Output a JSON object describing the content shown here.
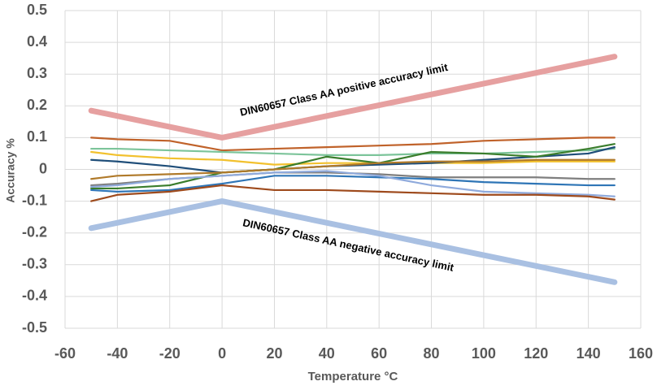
{
  "chart_data": {
    "type": "line",
    "x_label": "Temperature °C",
    "y_label": "Accuracy %",
    "xlim": [
      -60,
      160
    ],
    "xticks": [
      -60,
      -40,
      -20,
      0,
      20,
      40,
      60,
      80,
      100,
      120,
      140,
      160
    ],
    "ylim": [
      -0.5,
      0.5
    ],
    "yticks": [
      0.5,
      0.4,
      0.3,
      0.2,
      0.1,
      0,
      -0.1,
      -0.2,
      -0.3,
      -0.4,
      -0.5
    ],
    "grid": true,
    "series": [
      {
        "name": "DIN60657 Class AA positive accuracy limit",
        "color": "#e6a0a0",
        "x": [
          -50,
          0,
          150
        ],
        "values": [
          0.185,
          0.1,
          0.355
        ]
      },
      {
        "name": "DIN60657 Class AA negative accuracy limit",
        "color": "#a9c0e2",
        "x": [
          -50,
          0,
          150
        ],
        "values": [
          -0.185,
          -0.1,
          -0.355
        ]
      },
      {
        "color": "#c0622a",
        "x": [
          -50,
          -40,
          -20,
          0,
          20,
          40,
          60,
          80,
          100,
          120,
          140,
          150
        ],
        "values": [
          0.1,
          0.095,
          0.09,
          0.06,
          0.065,
          0.07,
          0.075,
          0.08,
          0.09,
          0.095,
          0.1,
          0.1
        ]
      },
      {
        "color": "#7cc49a",
        "x": [
          -50,
          -40,
          -20,
          0,
          20,
          40,
          60,
          80,
          100,
          120,
          140,
          150
        ],
        "values": [
          0.065,
          0.065,
          0.06,
          0.055,
          0.05,
          0.045,
          0.045,
          0.05,
          0.05,
          0.055,
          0.06,
          0.065
        ]
      },
      {
        "color": "#f2c12e",
        "x": [
          -50,
          -40,
          -20,
          0,
          20,
          40,
          60,
          80,
          100,
          120,
          140,
          150
        ],
        "values": [
          0.055,
          0.045,
          0.035,
          0.03,
          0.015,
          0.02,
          0.02,
          0.02,
          0.02,
          0.025,
          0.025,
          0.025
        ]
      },
      {
        "color": "#1f4e79",
        "x": [
          -50,
          -40,
          -20,
          0,
          20,
          40,
          60,
          80,
          100,
          120,
          140,
          150
        ],
        "values": [
          0.03,
          0.025,
          0.01,
          -0.01,
          0.0,
          0.01,
          0.015,
          0.02,
          0.03,
          0.04,
          0.05,
          0.07
        ]
      },
      {
        "color": "#3a7d2c",
        "x": [
          -50,
          -40,
          -20,
          0,
          20,
          40,
          60,
          80,
          100,
          120,
          140,
          150
        ],
        "values": [
          -0.06,
          -0.06,
          -0.05,
          -0.01,
          0.0,
          0.04,
          0.02,
          0.055,
          0.05,
          0.04,
          0.065,
          0.08
        ]
      },
      {
        "color": "#b07a2a",
        "x": [
          -50,
          -40,
          -20,
          0,
          20,
          40,
          60,
          80,
          100,
          120,
          140,
          150
        ],
        "values": [
          -0.03,
          -0.02,
          -0.015,
          -0.01,
          0.0,
          0.01,
          0.02,
          0.025,
          0.025,
          0.03,
          0.03,
          0.03
        ]
      },
      {
        "color": "#7f7f7f",
        "x": [
          -50,
          -40,
          -20,
          0,
          20,
          40,
          60,
          80,
          100,
          120,
          140,
          150
        ],
        "values": [
          -0.05,
          -0.045,
          -0.03,
          -0.02,
          -0.01,
          -0.01,
          -0.015,
          -0.025,
          -0.025,
          -0.025,
          -0.03,
          -0.03
        ]
      },
      {
        "color": "#2e75b6",
        "x": [
          -50,
          -40,
          -20,
          0,
          20,
          40,
          60,
          80,
          100,
          120,
          140,
          150
        ],
        "values": [
          -0.065,
          -0.07,
          -0.065,
          -0.045,
          -0.02,
          -0.02,
          -0.025,
          -0.03,
          -0.04,
          -0.045,
          -0.05,
          -0.05
        ]
      },
      {
        "color": "#8faadc",
        "x": [
          -50,
          -40,
          -20,
          0,
          20,
          40,
          60,
          80,
          100,
          120,
          140,
          150
        ],
        "values": [
          -0.055,
          -0.05,
          -0.03,
          -0.02,
          -0.01,
          -0.005,
          -0.02,
          -0.05,
          -0.07,
          -0.075,
          -0.08,
          -0.085
        ]
      },
      {
        "color": "#9e4a1c",
        "x": [
          -50,
          -40,
          -20,
          0,
          20,
          40,
          60,
          80,
          100,
          120,
          140,
          150
        ],
        "values": [
          -0.1,
          -0.08,
          -0.07,
          -0.05,
          -0.065,
          -0.065,
          -0.07,
          -0.075,
          -0.08,
          -0.08,
          -0.085,
          -0.095
        ]
      }
    ]
  }
}
